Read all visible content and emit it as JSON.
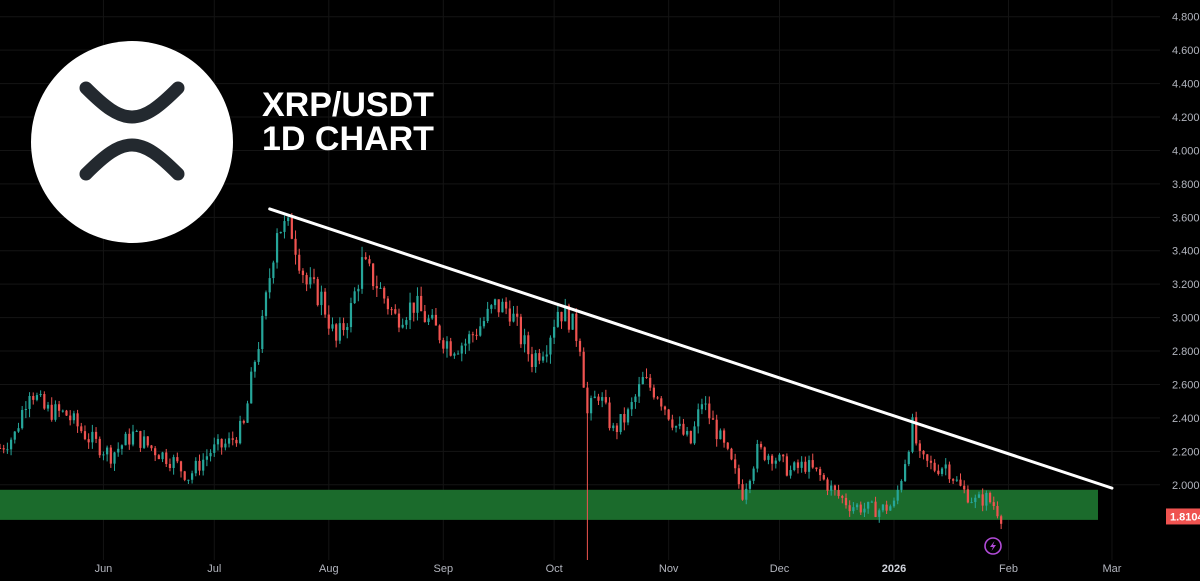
{
  "chart_data": {
    "type": "candlestick",
    "title_lines": [
      "XRP/USDT",
      "1D CHART"
    ],
    "y_axis": {
      "ticks": [
        "4.8000",
        "4.6000",
        "4.4000",
        "4.2000",
        "4.0000",
        "3.8000",
        "3.6000",
        "3.4000",
        "3.2000",
        "3.0000",
        "2.8000",
        "2.6000",
        "2.4000",
        "2.2000",
        "2.0000"
      ],
      "range": [
        1.55,
        4.9
      ]
    },
    "x_axis": {
      "ticks": [
        {
          "label": "Jun",
          "date": "2025-06-01",
          "bold": false
        },
        {
          "label": "Jul",
          "date": "2025-07-01",
          "bold": false
        },
        {
          "label": "Aug",
          "date": "2025-08-01",
          "bold": false
        },
        {
          "label": "Sep",
          "date": "2025-09-01",
          "bold": false
        },
        {
          "label": "Oct",
          "date": "2025-10-01",
          "bold": false
        },
        {
          "label": "Nov",
          "date": "2025-11-01",
          "bold": false
        },
        {
          "label": "Dec",
          "date": "2025-12-01",
          "bold": false
        },
        {
          "label": "2026",
          "date": "2026-01-01",
          "bold": true
        },
        {
          "label": "Feb",
          "date": "2026-02-01",
          "bold": false
        },
        {
          "label": "Mar",
          "date": "2026-03-01",
          "bold": false
        }
      ],
      "range": [
        "2025-05-04",
        "2026-03-14"
      ]
    },
    "current_price": "1.8104",
    "colors": {
      "up": "#26a69a",
      "down": "#ef5350",
      "support_zone": "#1b6b2c",
      "trendline": "#ffffff",
      "price_tag": "#ef5350"
    },
    "support_zone": {
      "low": 1.79,
      "high": 1.97
    },
    "trendline": {
      "start": {
        "date": "2025-07-16",
        "price": 3.65
      },
      "end": {
        "date": "2026-03-01",
        "price": 1.98
      }
    },
    "price_path": [
      [
        "2025-05-04",
        2.22
      ],
      [
        "2025-05-08",
        2.3
      ],
      [
        "2025-05-12",
        2.58
      ],
      [
        "2025-05-16",
        2.45
      ],
      [
        "2025-05-22",
        2.42
      ],
      [
        "2025-05-28",
        2.28
      ],
      [
        "2025-06-03",
        2.18
      ],
      [
        "2025-06-09",
        2.3
      ],
      [
        "2025-06-14",
        2.22
      ],
      [
        "2025-06-20",
        2.14
      ],
      [
        "2025-06-24",
        2.05
      ],
      [
        "2025-06-30",
        2.2
      ],
      [
        "2025-07-05",
        2.25
      ],
      [
        "2025-07-09",
        2.35
      ],
      [
        "2025-07-12",
        2.75
      ],
      [
        "2025-07-14",
        2.95
      ],
      [
        "2025-07-18",
        3.55
      ],
      [
        "2025-07-22",
        3.52
      ],
      [
        "2025-07-26",
        3.2
      ],
      [
        "2025-07-30",
        3.12
      ],
      [
        "2025-08-03",
        2.85
      ],
      [
        "2025-08-07",
        3.05
      ],
      [
        "2025-08-10",
        3.32
      ],
      [
        "2025-08-14",
        3.2
      ],
      [
        "2025-08-19",
        3.0
      ],
      [
        "2025-08-24",
        3.08
      ],
      [
        "2025-08-29",
        2.95
      ],
      [
        "2025-09-03",
        2.83
      ],
      [
        "2025-09-07",
        2.85
      ],
      [
        "2025-09-12",
        2.98
      ],
      [
        "2025-09-15",
        3.07
      ],
      [
        "2025-09-19",
        3.05
      ],
      [
        "2025-09-22",
        2.88
      ],
      [
        "2025-09-25",
        2.75
      ],
      [
        "2025-09-29",
        2.85
      ],
      [
        "2025-10-02",
        3.05
      ],
      [
        "2025-10-05",
        3.0
      ],
      [
        "2025-10-08",
        2.85
      ],
      [
        "2025-10-10",
        2.42
      ],
      [
        "2025-10-13",
        2.55
      ],
      [
        "2025-10-17",
        2.32
      ],
      [
        "2025-10-21",
        2.42
      ],
      [
        "2025-10-25",
        2.62
      ],
      [
        "2025-10-29",
        2.55
      ],
      [
        "2025-11-03",
        2.35
      ],
      [
        "2025-11-07",
        2.25
      ],
      [
        "2025-11-10",
        2.5
      ],
      [
        "2025-11-14",
        2.32
      ],
      [
        "2025-11-18",
        2.12
      ],
      [
        "2025-11-21",
        1.95
      ],
      [
        "2025-11-25",
        2.2
      ],
      [
        "2025-11-29",
        2.18
      ],
      [
        "2025-12-04",
        2.08
      ],
      [
        "2025-12-08",
        2.12
      ],
      [
        "2025-12-12",
        2.05
      ],
      [
        "2025-12-16",
        1.95
      ],
      [
        "2025-12-20",
        1.88
      ],
      [
        "2025-12-24",
        1.86
      ],
      [
        "2025-12-28",
        1.85
      ],
      [
        "2026-01-01",
        1.88
      ],
      [
        "2026-01-03",
        2.05
      ],
      [
        "2026-01-06",
        2.35
      ],
      [
        "2026-01-08",
        2.15
      ],
      [
        "2026-01-12",
        2.1
      ],
      [
        "2026-01-15",
        2.12
      ],
      [
        "2026-01-19",
        1.98
      ],
      [
        "2026-01-23",
        1.9
      ],
      [
        "2026-01-26",
        1.92
      ],
      [
        "2026-01-28",
        1.88
      ],
      [
        "2026-01-30",
        1.81
      ]
    ],
    "wick_events": [
      {
        "date": "2025-10-10",
        "low": 1.55
      }
    ]
  },
  "icons": {
    "logo": "xrp-logo",
    "alert": "lightning-alert-icon"
  }
}
